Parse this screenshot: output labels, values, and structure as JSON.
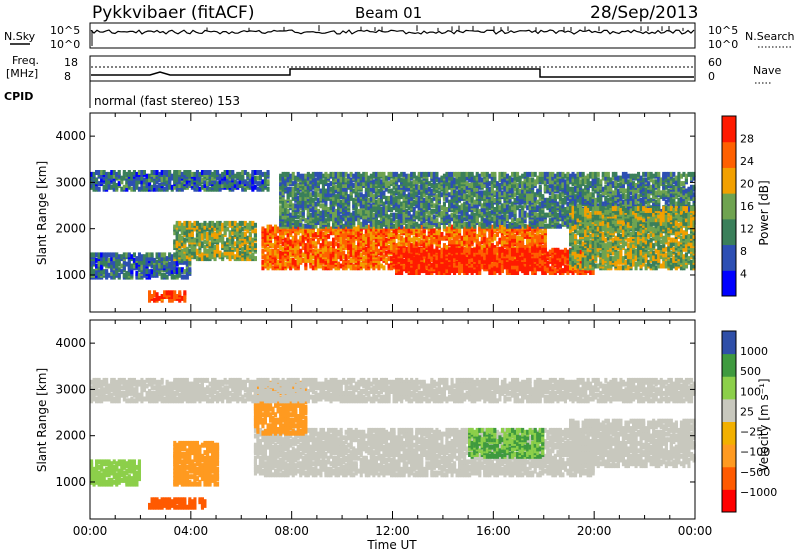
{
  "header": {
    "station": "Pykkvibaer (fitACF)",
    "beam": "Beam 01",
    "date": "28/Sep/2013"
  },
  "top_panels": {
    "nsky": {
      "label": "N.Sky",
      "ticks": [
        "10^5",
        "10^0"
      ],
      "right_ticks": [
        "10^5",
        "10^0"
      ],
      "right_label": "N.Search"
    },
    "freq": {
      "label_line1": "Freq.",
      "label_line2": "[MHz]",
      "ticks": [
        "18",
        "8"
      ],
      "right_ticks": [
        "60",
        "0"
      ],
      "right_label": "Nave"
    },
    "cpid": {
      "label": "CPID",
      "text": "normal (fast stereo) 153"
    }
  },
  "chart_data": [
    {
      "type": "heatmap",
      "name": "power",
      "ylabel": "Slant Range [km]",
      "y_ticks": [
        "4000",
        "3000",
        "2000",
        "1000"
      ],
      "ylim": [
        200,
        4500
      ],
      "colorbar_label": "Power [dB]",
      "colorbar_ticks": [
        "28",
        "24",
        "20",
        "16",
        "12",
        "8",
        "4"
      ],
      "colorbar_colors": [
        "#0000ff",
        "#2d4fb3",
        "#3a7f5a",
        "#6fa350",
        "#f2a000",
        "#ff6000",
        "#ff1a00"
      ],
      "bands": [
        {
          "start": 0.0,
          "end": 4.0,
          "rmin": 900,
          "rmax": 1400,
          "value": 10
        },
        {
          "start": 3.3,
          "end": 6.5,
          "rmin": 1300,
          "rmax": 2100,
          "value": 16
        },
        {
          "start": 0.0,
          "end": 7.0,
          "rmin": 2800,
          "rmax": 3200,
          "value": 10
        },
        {
          "start": 2.3,
          "end": 3.8,
          "rmin": 400,
          "rmax": 600,
          "value": 26
        },
        {
          "start": 6.8,
          "end": 18.0,
          "rmin": 1100,
          "rmax": 2000,
          "value": 24
        },
        {
          "start": 12.0,
          "end": 20.0,
          "rmin": 1000,
          "rmax": 1500,
          "value": 28
        },
        {
          "start": 7.5,
          "end": 24.0,
          "rmin": 2000,
          "rmax": 3150,
          "value": 12
        },
        {
          "start": 19.0,
          "end": 24.0,
          "rmin": 1100,
          "rmax": 2400,
          "value": 16
        }
      ]
    },
    {
      "type": "heatmap",
      "name": "velocity",
      "ylabel": "Slant Range [km]",
      "y_ticks": [
        "4000",
        "3000",
        "2000",
        "1000"
      ],
      "ylim": [
        200,
        4500
      ],
      "colorbar_label": "Velocity [m s⁻¹]",
      "colorbar_ticks": [
        "1000",
        "500",
        "100",
        "25",
        "−25",
        "−100",
        "−500",
        "−1000"
      ],
      "colorbar_colors": [
        "#ff0000",
        "#ff5a00",
        "#ff9a20",
        "#f2b000",
        "#c8c8be",
        "#8ccf4a",
        "#3f9a3f",
        "#2f4fa8"
      ],
      "bands": [
        {
          "start": 0.0,
          "end": 2.0,
          "rmin": 900,
          "rmax": 1400,
          "value": 100
        },
        {
          "start": 3.3,
          "end": 5.0,
          "rmin": 900,
          "rmax": 1800,
          "value": -150
        },
        {
          "start": 2.3,
          "end": 4.5,
          "rmin": 400,
          "rmax": 600,
          "value": -300
        },
        {
          "start": 6.5,
          "end": 20.0,
          "rmin": 1100,
          "rmax": 2100,
          "value": 0
        },
        {
          "start": 15.0,
          "end": 18.0,
          "rmin": 1500,
          "rmax": 2100,
          "value": 150
        },
        {
          "start": 6.5,
          "end": 8.5,
          "rmin": 2000,
          "rmax": 3100,
          "value": -200
        },
        {
          "start": 0.0,
          "end": 24.0,
          "rmin": 2700,
          "rmax": 3150,
          "value": 0
        },
        {
          "start": 19.0,
          "end": 24.0,
          "rmin": 1300,
          "rmax": 2300,
          "value": 0
        }
      ]
    }
  ],
  "x_axis": {
    "label": "Time UT",
    "ticks": [
      "00:00",
      "04:00",
      "08:00",
      "12:00",
      "16:00",
      "20:00",
      "00:00"
    ]
  }
}
